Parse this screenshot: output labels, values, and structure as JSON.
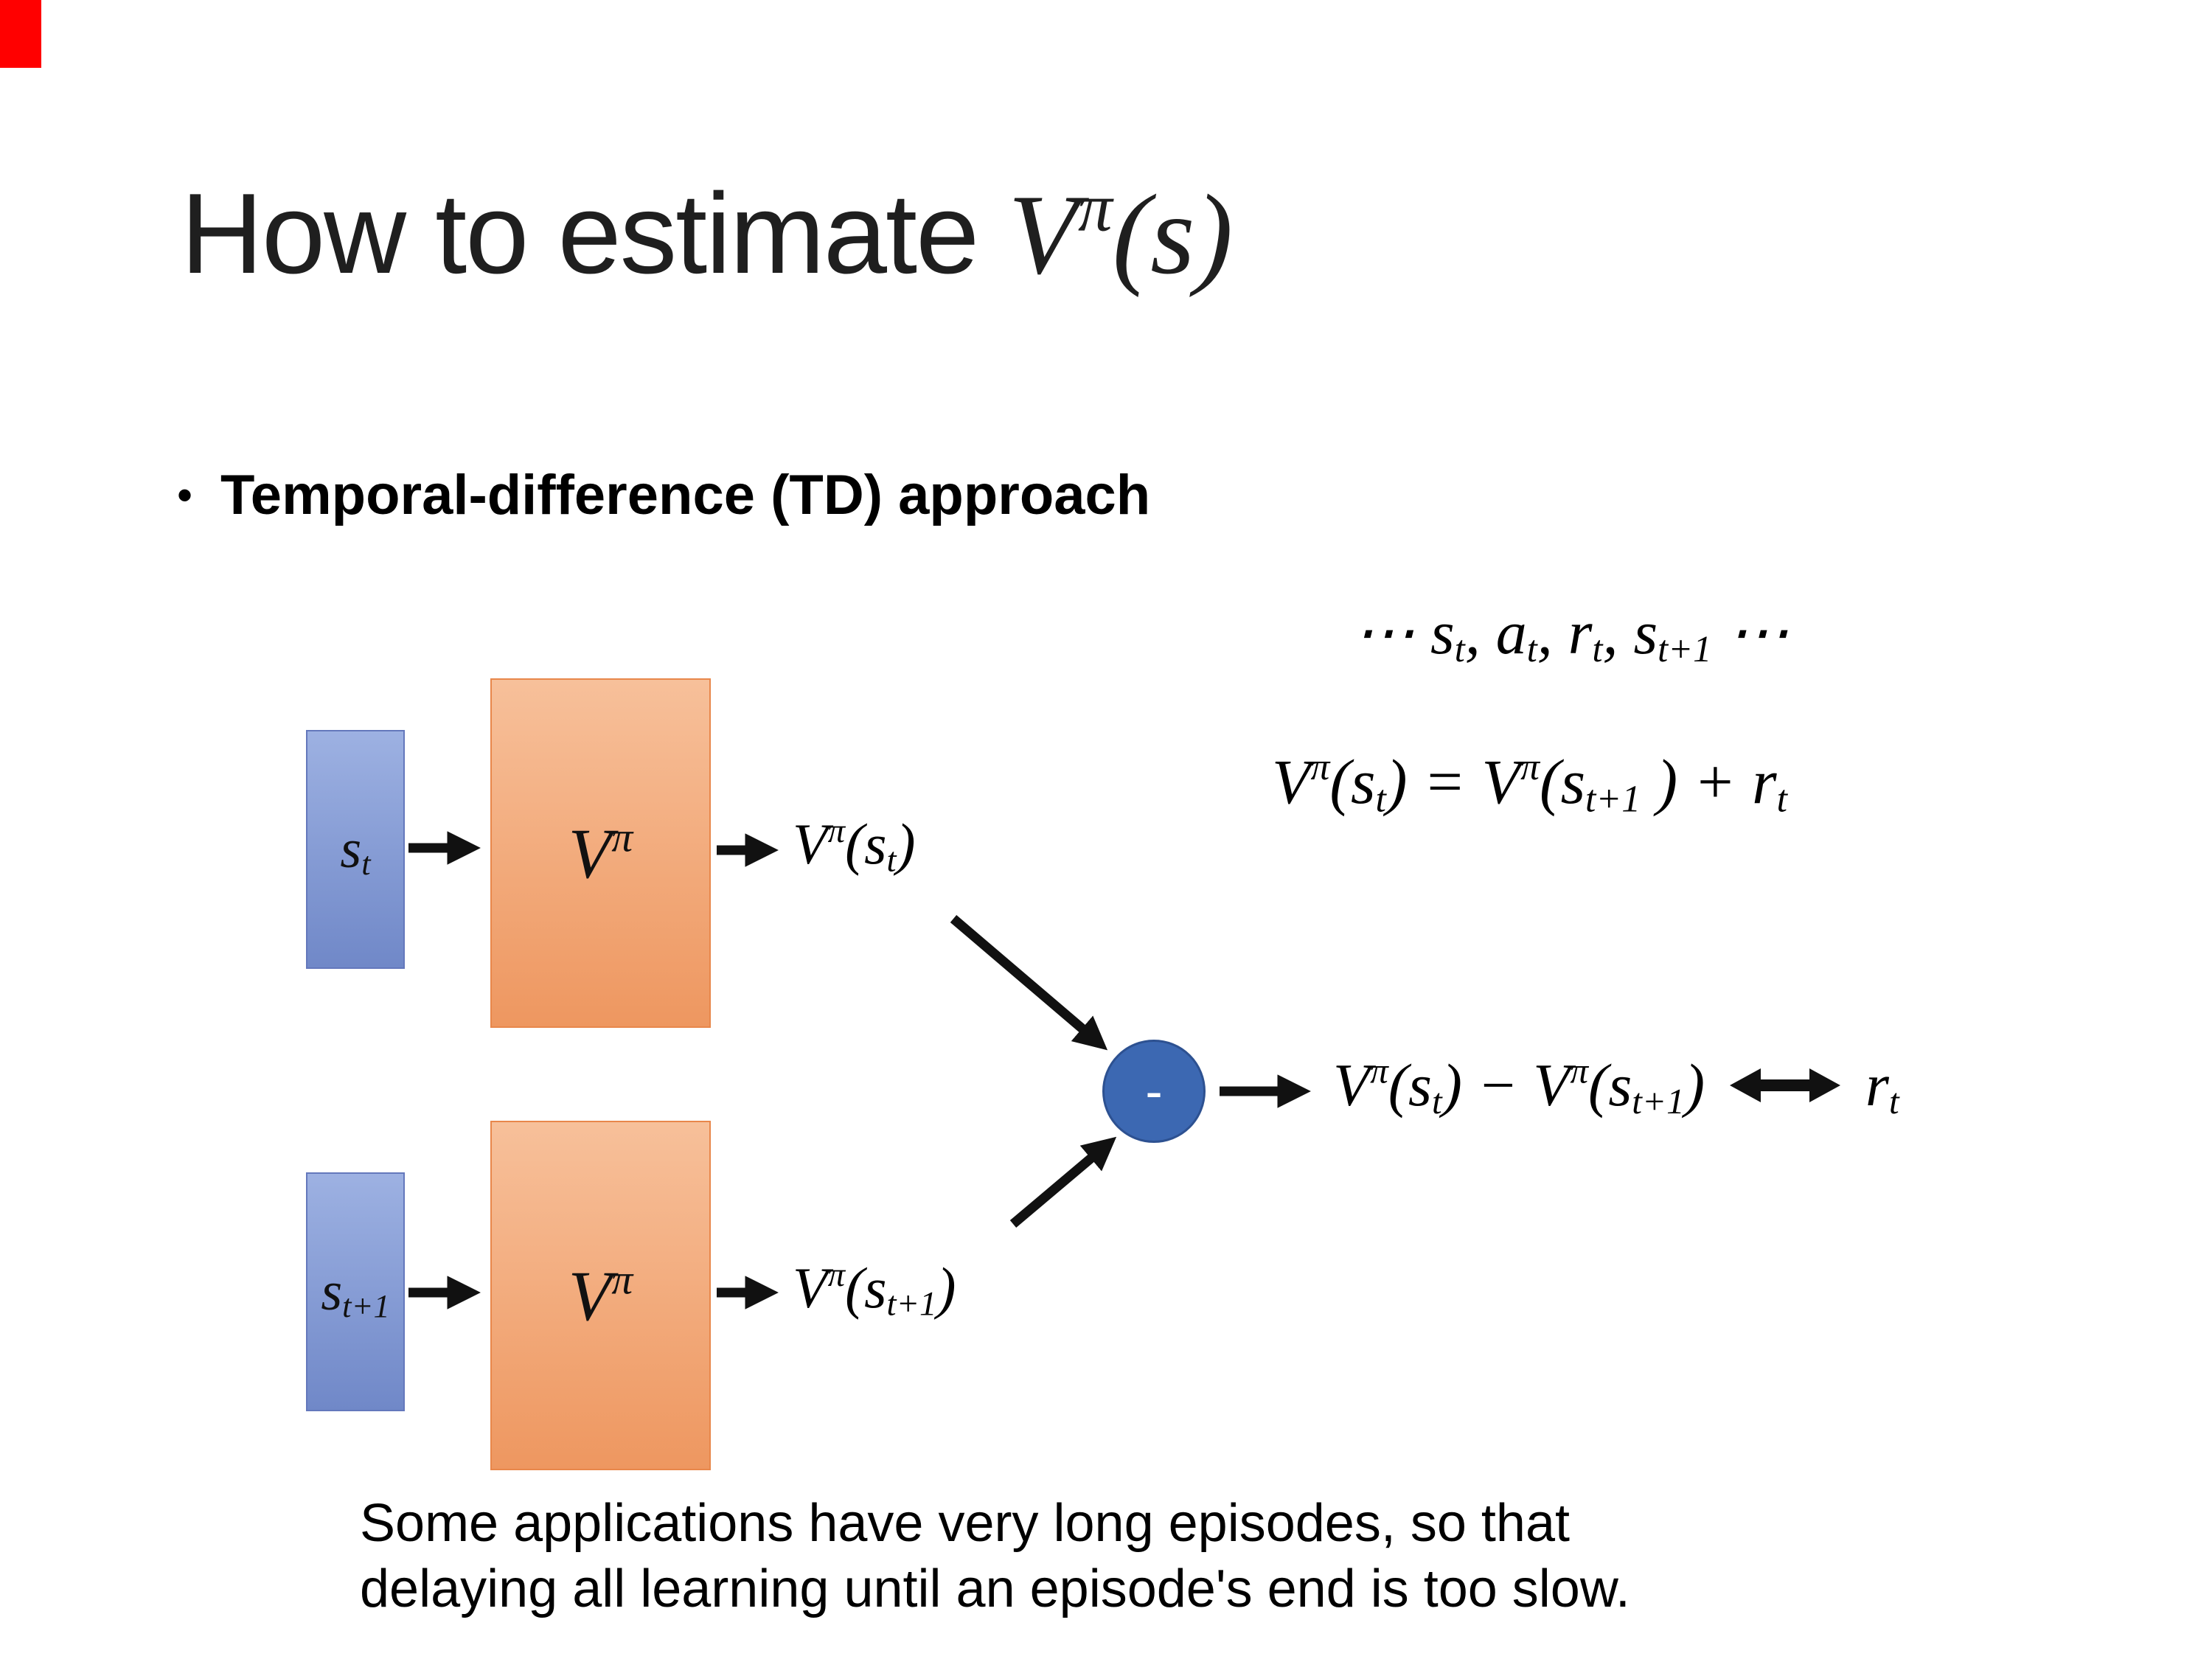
{
  "slide": {
    "title": {
      "text": "How to estimate ",
      "math": [
        {
          "t": "V"
        },
        {
          "sup": "π"
        },
        {
          "t": "(s)"
        }
      ]
    },
    "bullet": {
      "marker": "•",
      "text": "Temporal-difference (TD) approach"
    },
    "sequence_math": [
      {
        "t": "⋯ s"
      },
      {
        "sub": "t"
      },
      {
        "t": ", a"
      },
      {
        "sub": "t"
      },
      {
        "t": ", r"
      },
      {
        "sub": "t"
      },
      {
        "t": ", s"
      },
      {
        "sub": "t+1"
      },
      {
        "t": " ⋯"
      }
    ],
    "td_equation_math": [
      {
        "t": "V"
      },
      {
        "sup": "π"
      },
      {
        "t": "(s"
      },
      {
        "sub": "t"
      },
      {
        "t": ") = V"
      },
      {
        "sup": "π"
      },
      {
        "t": "(s"
      },
      {
        "sub": "t+1"
      },
      {
        "t": " ) + r"
      },
      {
        "sub": "t"
      }
    ],
    "diagram": {
      "state_top_math": [
        {
          "t": "s"
        },
        {
          "sub": "t"
        }
      ],
      "state_bottom_math": [
        {
          "t": "s"
        },
        {
          "sub": "t+1"
        }
      ],
      "value_fn_math": [
        {
          "t": "V"
        },
        {
          "sup": "π"
        }
      ],
      "output_top_math": [
        {
          "t": "V"
        },
        {
          "sup": "π"
        },
        {
          "t": "(s"
        },
        {
          "sub": "t"
        },
        {
          "t": ")"
        }
      ],
      "output_bottom_math": [
        {
          "t": "V"
        },
        {
          "sup": "π"
        },
        {
          "t": "(s"
        },
        {
          "sub": "t+1"
        },
        {
          "t": ")"
        }
      ],
      "minus_label": "-",
      "diff_math": [
        {
          "t": "V"
        },
        {
          "sup": "π"
        },
        {
          "t": "(s"
        },
        {
          "sub": "t"
        },
        {
          "t": ") − V"
        },
        {
          "sup": "π"
        },
        {
          "t": "(s"
        },
        {
          "sub": "t+1"
        },
        {
          "t": ")"
        }
      ],
      "reward_math": [
        {
          "t": "r"
        },
        {
          "sub": "t"
        }
      ],
      "edges": [
        {
          "from": "state-st",
          "to": "value-net-top"
        },
        {
          "from": "value-net-top",
          "to": "output-vst"
        },
        {
          "from": "output-vst",
          "to": "minus-node"
        },
        {
          "from": "state-st1",
          "to": "value-net-bottom"
        },
        {
          "from": "value-net-bottom",
          "to": "output-vst1"
        },
        {
          "from": "output-vst1",
          "to": "minus-node"
        },
        {
          "from": "minus-node",
          "to": "td-error"
        },
        {
          "from": "td-error",
          "to": "reward",
          "style": "double-headed"
        }
      ]
    },
    "note": {
      "line1": "Some applications have very long episodes, so that",
      "line2": "delaying all learning until an episode's end is too slow."
    },
    "colors": {
      "corner_accent": "#ff0000",
      "state_fill_top": "#9db1e2",
      "state_fill_bottom": "#7088c8",
      "state_border": "#6478bc",
      "value_fill_top": "#f7c09a",
      "value_fill_bottom": "#ee9760",
      "value_border": "#e8874b",
      "minus_fill": "#3c68b2",
      "minus_border": "#2d5191",
      "arrow": "#111111",
      "title_text": "#1f1f1f",
      "body_text": "#000000"
    }
  }
}
